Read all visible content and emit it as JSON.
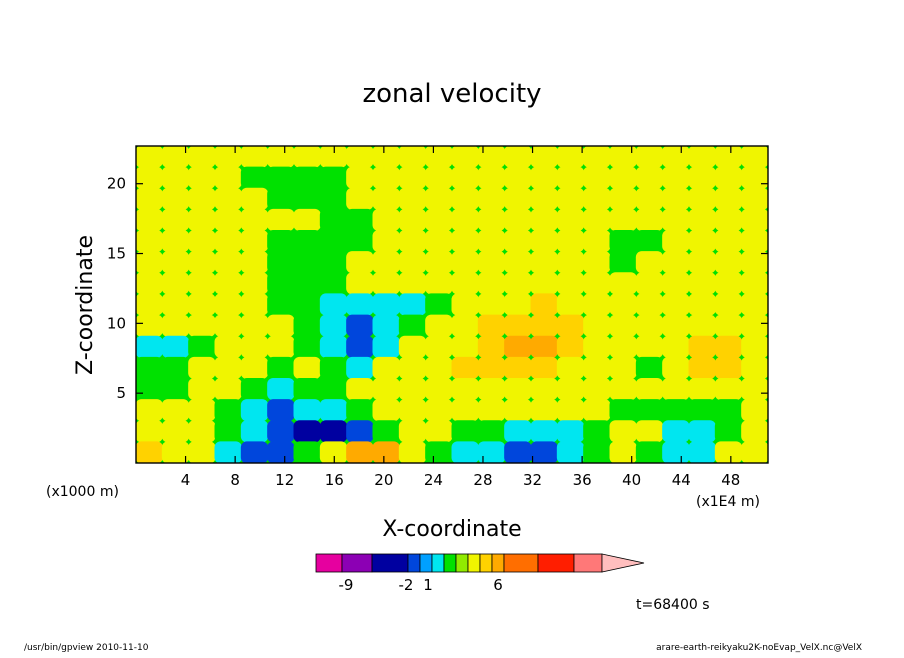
{
  "chart_data": {
    "type": "heatmap",
    "title": "zonal velocity",
    "xlabel": "X-coordinate",
    "ylabel": "Z-coordinate",
    "x_unit": "(x1E4 m)",
    "y_unit": "(x1000 m)",
    "xlim": [
      0,
      51
    ],
    "ylim": [
      0,
      22.7
    ],
    "xticks": [
      "4",
      "8",
      "12",
      "16",
      "20",
      "24",
      "28",
      "32",
      "36",
      "40",
      "44",
      "48"
    ],
    "yticks": [
      "5",
      "10",
      "15",
      "20"
    ],
    "grid": false,
    "colorbar": {
      "labels": [
        "-9",
        "-2",
        "1",
        "6"
      ],
      "colors": [
        "#e6009f",
        "#8c00b4",
        "#0000a0",
        "#0046dc",
        "#00a0ff",
        "#00e6f0",
        "#00e100",
        "#91eb00",
        "#f0f500",
        "#ffd200",
        "#ffaa00",
        "#ff6e00",
        "#ff1e00",
        "#ff7878",
        "#ffbebe"
      ]
    },
    "annotation": "t=68400 s",
    "field_levels": [
      [
        1,
        1,
        1,
        0.7,
        0.7,
        1,
        1,
        1,
        1,
        1,
        1,
        1,
        0.5,
        0.7,
        0.7,
        1,
        1,
        1,
        1,
        1,
        1,
        0.9,
        1,
        1
      ],
      [
        0.5,
        0.4,
        0.6,
        0.6,
        0.2,
        -0.3,
        0.2,
        0.3,
        0.5,
        0.5,
        0.6,
        0.6,
        0.5,
        0.5,
        0.6,
        0.6,
        0.5,
        0.5,
        0.6,
        0.5,
        0.5,
        0.7,
        0.8,
        0.8
      ],
      [
        0.7,
        0.6,
        0.6,
        0.6,
        0.5,
        0.3,
        0.3,
        0.2,
        0.5,
        0.5,
        0.6,
        0.6,
        0.5,
        0.5,
        0.6,
        0.6,
        0.5,
        0.5,
        0.6,
        0.5,
        0.6,
        0.7,
        0.8,
        0.8
      ],
      [
        1,
        1,
        1,
        1,
        1,
        0.6,
        0.4,
        0.3,
        0.2,
        0.4,
        0.6,
        0.7,
        0.6,
        0.6,
        0.6,
        0.6,
        0.5,
        0.5,
        0.6,
        0.5,
        0.5,
        0.6,
        0.8,
        1
      ],
      [
        1,
        1,
        1,
        1,
        0.6,
        0.3,
        0.2,
        0.2,
        0.3,
        0.6,
        0.8,
        1,
        1,
        0.8,
        0.7,
        0.6,
        0.5,
        0.5,
        0.2,
        0.3,
        0.6,
        0.8,
        1,
        1
      ],
      [
        1,
        1,
        1,
        1,
        0.5,
        0.2,
        0.2,
        0.3,
        0.5,
        0.6,
        0.8,
        1,
        1,
        1,
        0.8,
        0.6,
        0.5,
        0.5,
        0.3,
        0.4,
        0.6,
        0.8,
        1,
        1
      ],
      [
        1,
        1,
        1,
        1,
        0.6,
        0.3,
        0.2,
        0.3,
        0.4,
        0.6,
        1,
        1,
        1,
        1,
        0.9,
        0.8,
        0.6,
        0.5,
        0.6,
        0.8,
        1,
        1,
        1,
        1
      ],
      [
        1,
        1,
        1,
        0.9,
        0.6,
        0.2,
        -0.3,
        -0.8,
        -1,
        -0.9,
        -0.5,
        0.2,
        0.7,
        0.8,
        1.2,
        1.4,
        1.2,
        1,
        0.8,
        0.8,
        0.8,
        1,
        1,
        1
      ],
      [
        0.6,
        0.4,
        0.6,
        0.9,
        0.7,
        0.5,
        -0.2,
        -0.6,
        -1.2,
        -0.6,
        0.3,
        0.7,
        1,
        1.4,
        1.8,
        1.7,
        1.4,
        1.1,
        0.7,
        0.6,
        0.8,
        1,
        1.1,
        1
      ],
      [
        -0.5,
        -0.4,
        0.2,
        0.7,
        0.7,
        0.5,
        0.3,
        -0.4,
        -1.8,
        -0.8,
        0.4,
        0.8,
        1.2,
        1.6,
        2.4,
        2.2,
        1.6,
        1,
        0.6,
        0.4,
        0.8,
        1.6,
        1.4,
        0.7
      ],
      [
        -0.2,
        0.1,
        0.6,
        0.9,
        0.6,
        0.2,
        0.4,
        0.2,
        -0.6,
        0.5,
        0.9,
        1,
        1.4,
        1.9,
        1.9,
        1.6,
        1.1,
        0.8,
        0.6,
        0.2,
        0.6,
        1.4,
        1.3,
        0.8
      ],
      [
        0.1,
        0.2,
        0.6,
        0.5,
        -0.1,
        -0.4,
        -0.1,
        0.2,
        0.4,
        0.6,
        0.9,
        1,
        1,
        1,
        1,
        0.9,
        0.8,
        0.7,
        0.6,
        0.4,
        0.5,
        0.7,
        0.7,
        0.6
      ],
      [
        0.5,
        0.5,
        0.4,
        0.2,
        -0.6,
        -1.2,
        -0.9,
        -0.5,
        -0.1,
        0.6,
        0.9,
        0.8,
        0.7,
        0.6,
        0.5,
        0.5,
        0.5,
        0.5,
        0.3,
        0.2,
        0.2,
        0.1,
        0.2,
        0.4
      ],
      [
        1.1,
        0.6,
        0.4,
        0.1,
        -0.5,
        -1.4,
        -2.2,
        -2.3,
        -1.1,
        0.1,
        0.5,
        0.4,
        0.2,
        0.0,
        -0.4,
        -0.8,
        -0.6,
        0.3,
        0.5,
        0.4,
        -0.4,
        -0.7,
        0.0,
        0.8
      ],
      [
        1.6,
        1.2,
        0.6,
        -0.6,
        -1.2,
        -1.4,
        -0.3,
        0.6,
        2.2,
        2.4,
        0.8,
        0.0,
        -0.6,
        -1.0,
        -1.2,
        -1.1,
        -0.5,
        0.3,
        0.6,
        0.2,
        -0.6,
        -0.5,
        0.4,
        0.9
      ]
    ]
  },
  "footer": {
    "left": "/usr/bin/gpview   2010-11-10",
    "right": "arare-earth-reikyaku2K-noEvap_VelX.nc@VelX"
  }
}
